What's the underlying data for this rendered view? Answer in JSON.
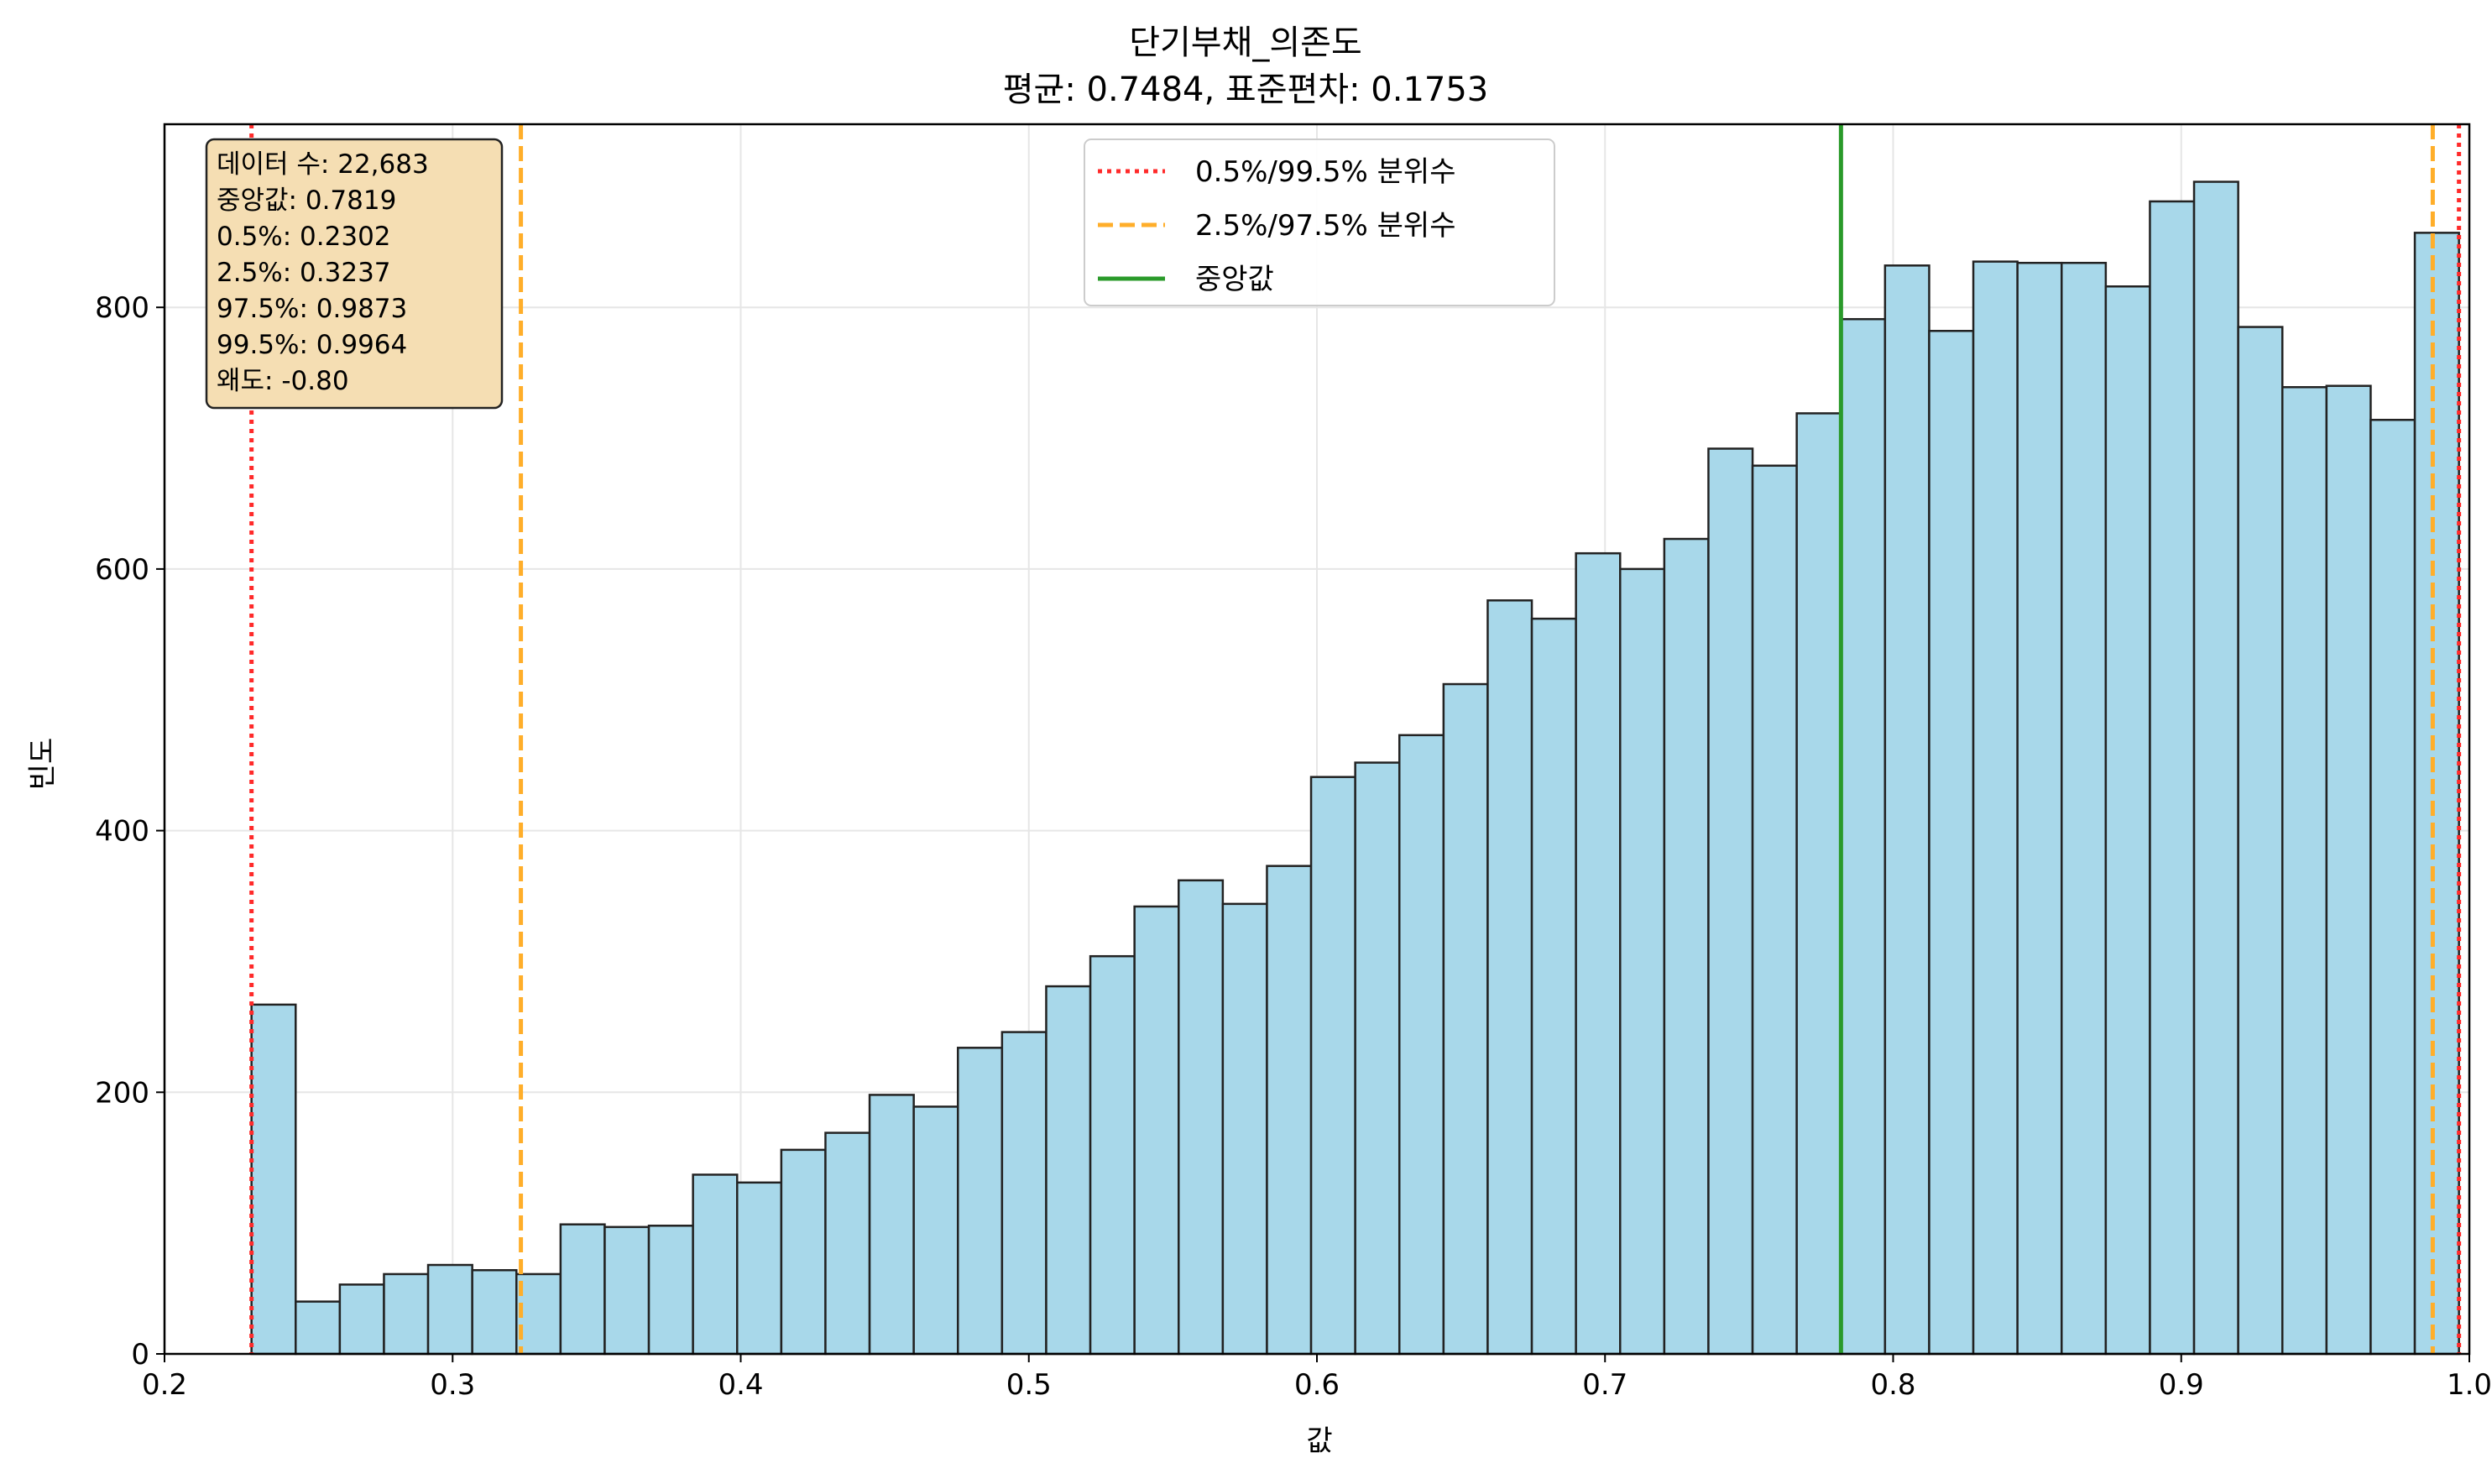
{
  "chart_data": {
    "type": "bar",
    "subtype": "histogram",
    "title": "단기부채_의존도",
    "subtitle": "평균: 0.7484, 표준편차: 0.1753",
    "xlabel": "값",
    "ylabel": "빈도",
    "xlim": [
      0.2,
      1.0
    ],
    "ylim": [
      0,
      940
    ],
    "x_ticks": [
      0.2,
      0.3,
      0.4,
      0.5,
      0.6,
      0.7,
      0.8,
      0.9,
      1.0
    ],
    "x_tick_labels": [
      "0.2",
      "0.3",
      "0.4",
      "0.5",
      "0.6",
      "0.7",
      "0.8",
      "0.9",
      "1.0"
    ],
    "y_ticks": [
      0,
      200,
      400,
      600,
      800
    ],
    "y_tick_labels": [
      "0",
      "200",
      "400",
      "600",
      "800"
    ],
    "grid": true,
    "bin_start": 0.2302,
    "bin_end": 0.9964,
    "bar_color": "#a8d8ea",
    "bar_edge_color": "#222222",
    "counts": [
      267,
      40,
      53,
      61,
      68,
      64,
      61,
      99,
      97,
      98,
      137,
      131,
      156,
      169,
      198,
      189,
      234,
      246,
      281,
      304,
      342,
      362,
      344,
      373,
      441,
      452,
      473,
      512,
      576,
      562,
      612,
      600,
      623,
      692,
      679,
      719,
      791,
      832,
      782,
      835,
      834,
      834,
      816,
      881,
      896,
      785,
      739,
      740,
      714,
      857
    ],
    "reference_lines": [
      {
        "name": "0.5%/99.5% 분위수",
        "values": [
          0.2302,
          0.9964
        ],
        "color": "#ff2a2a",
        "style": "dotted"
      },
      {
        "name": "2.5%/97.5% 분위수",
        "values": [
          0.3237,
          0.9873
        ],
        "color": "#ffae2a",
        "style": "dashed"
      },
      {
        "name": "중앙값",
        "values": [
          0.7819
        ],
        "color": "#2a9a2a",
        "style": "solid"
      }
    ],
    "legend": {
      "position": "top-center",
      "entries": [
        "0.5%/99.5% 분위수",
        "2.5%/97.5% 분위수",
        "중앙값"
      ]
    },
    "stats_box": {
      "position": "top-left",
      "background": "#f5deb3",
      "lines": [
        "데이터 수: 22,683",
        "중앙값: 0.7819",
        "0.5%: 0.2302",
        "2.5%: 0.3237",
        "97.5%: 0.9873",
        "99.5%: 0.9964",
        "왜도: -0.80"
      ]
    }
  }
}
